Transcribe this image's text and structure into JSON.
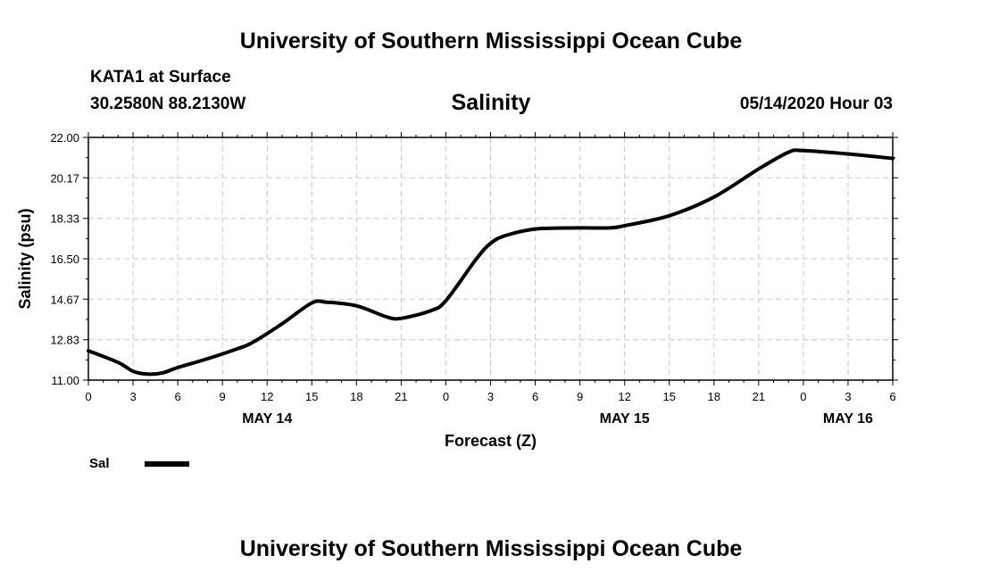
{
  "header": {
    "title_top": "University of Southern Mississippi Ocean Cube",
    "station": "KATA1 at Surface",
    "coords": "30.2580N 88.2130W",
    "variable": "Salinity",
    "datetime": "05/14/2020 Hour 03",
    "title_bottom": "University of Southern Mississippi Ocean Cube"
  },
  "legend": {
    "label": "Sal",
    "color": "#000000"
  },
  "chart_data": {
    "type": "line",
    "title": "Salinity",
    "xlabel": "Forecast (Z)",
    "ylabel": "Salinity (psu)",
    "xlim": [
      0,
      54
    ],
    "ylim": [
      11.0,
      22.0
    ],
    "yticks": [
      "11.00",
      "12.83",
      "14.67",
      "16.50",
      "18.33",
      "20.17",
      "22.00"
    ],
    "xticks": [
      0,
      3,
      6,
      9,
      12,
      15,
      18,
      21,
      24,
      27,
      30,
      33,
      36,
      39,
      42,
      45,
      48,
      51,
      54
    ],
    "xtick_labels": [
      "0",
      "3",
      "6",
      "9",
      "12",
      "15",
      "18",
      "21",
      "0",
      "3",
      "6",
      "9",
      "12",
      "15",
      "18",
      "21",
      "0",
      "3",
      "6"
    ],
    "day_labels": [
      {
        "x": 12,
        "label": "MAY 14"
      },
      {
        "x": 36,
        "label": "MAY 15"
      },
      {
        "x": 51,
        "label": "MAY 16"
      }
    ],
    "grid": true,
    "series": [
      {
        "name": "Sal",
        "x": [
          0,
          2,
          3,
          4,
          5,
          6,
          8,
          10,
          11,
          13,
          15,
          16,
          18,
          20,
          21,
          23,
          24,
          26,
          27,
          28,
          30,
          33,
          35,
          36,
          39,
          42,
          45,
          47,
          48,
          51,
          54
        ],
        "values": [
          12.33,
          11.8,
          11.4,
          11.27,
          11.33,
          11.57,
          11.97,
          12.42,
          12.7,
          13.55,
          14.5,
          14.53,
          14.37,
          13.87,
          13.8,
          14.15,
          14.6,
          16.45,
          17.2,
          17.55,
          17.85,
          17.9,
          17.9,
          18.0,
          18.45,
          19.3,
          20.57,
          21.33,
          21.4,
          21.25,
          21.05
        ]
      }
    ]
  }
}
